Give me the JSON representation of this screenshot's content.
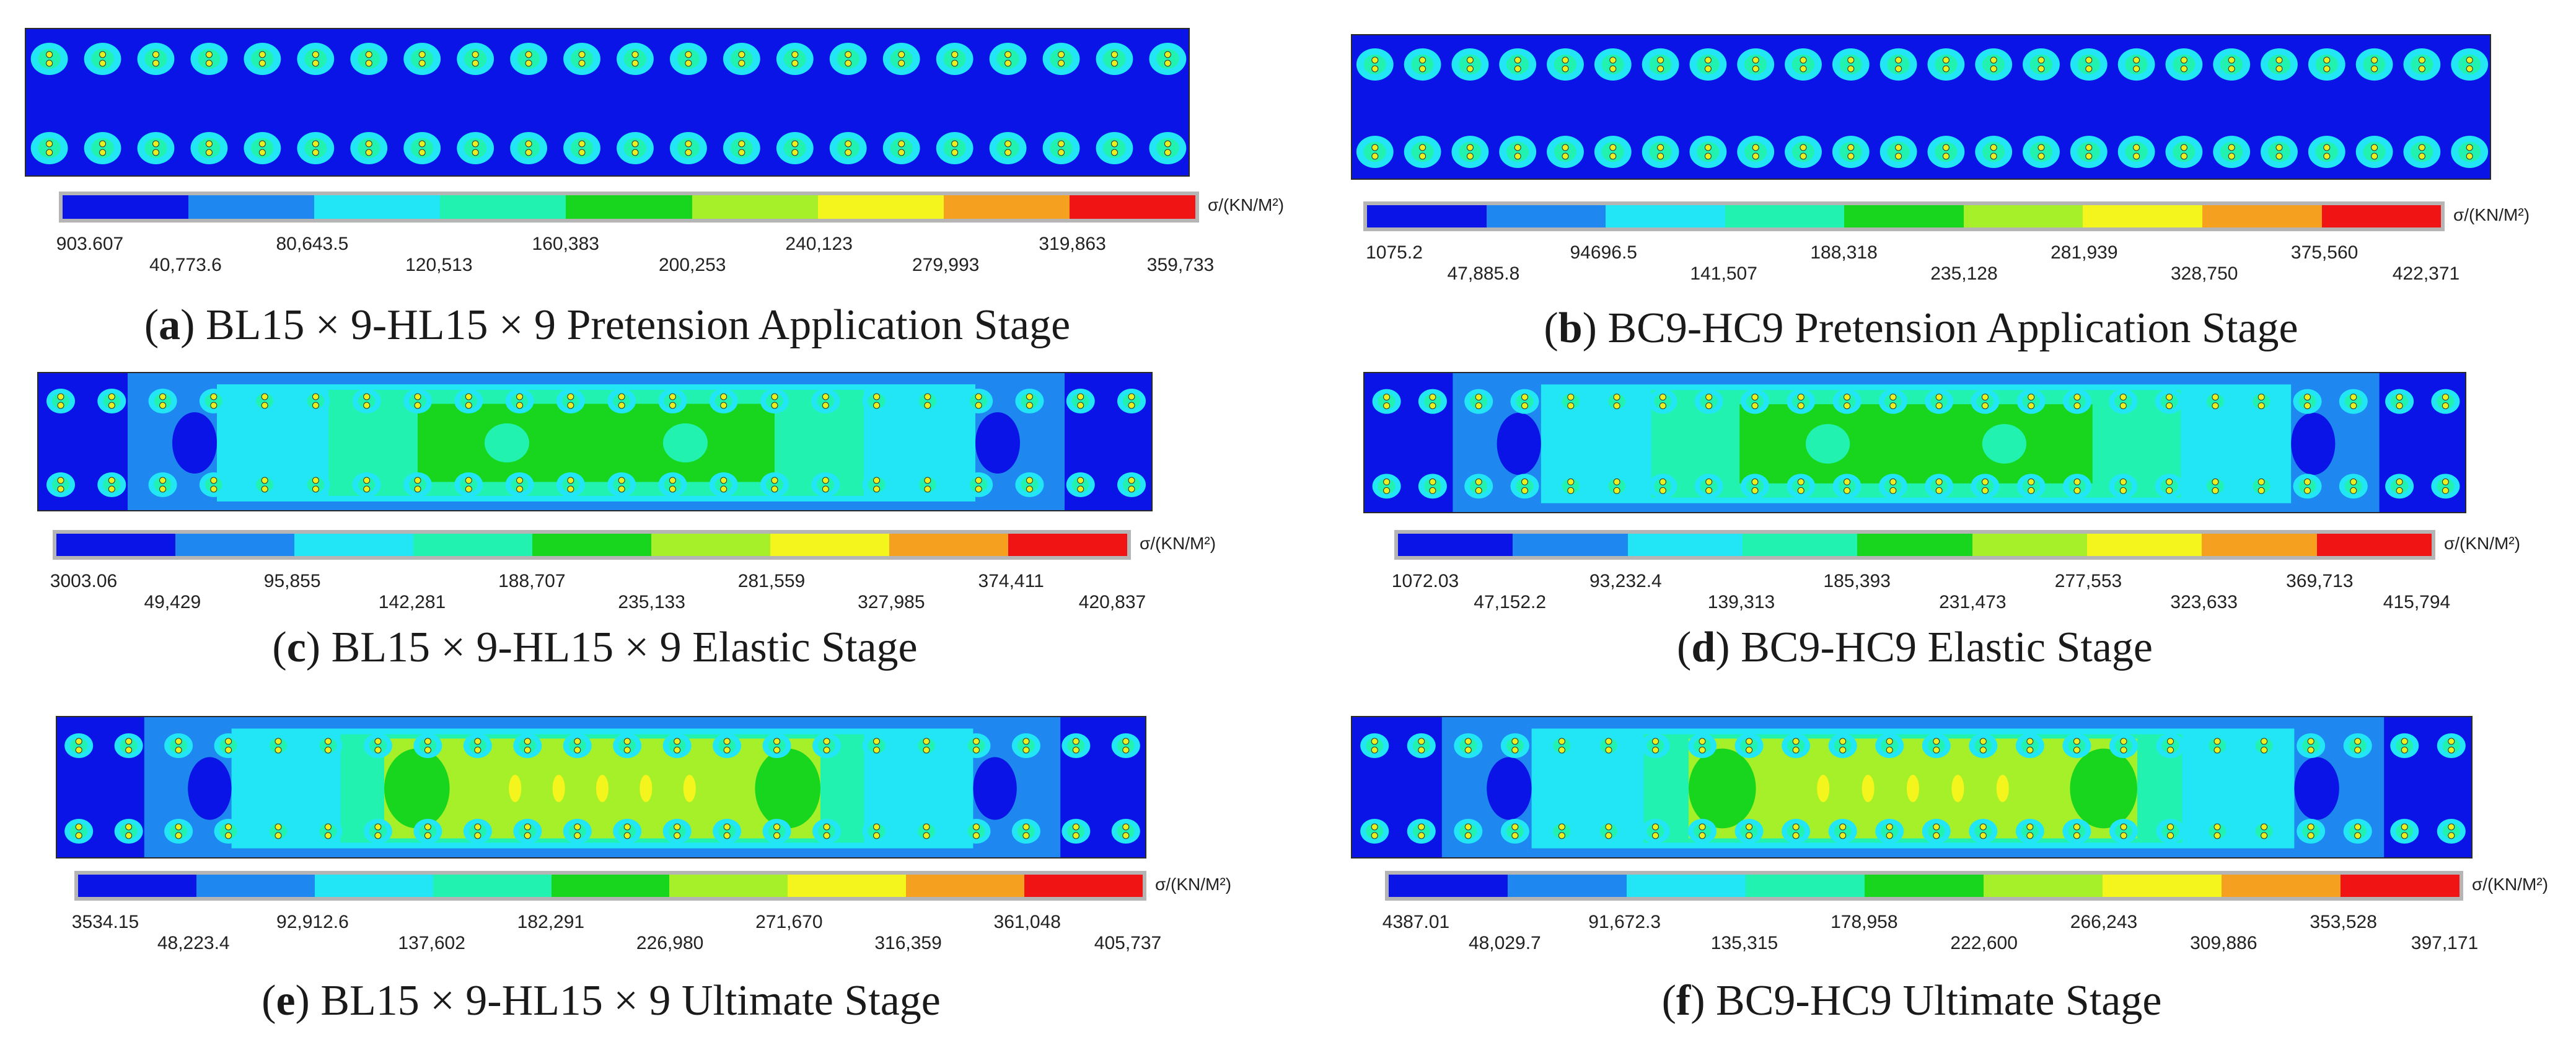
{
  "legend_colors": [
    "#0a14e6",
    "#1e88f0",
    "#22e6f5",
    "#22f2b0",
    "#18d61e",
    "#a6f02a",
    "#f5f51e",
    "#f5a01e",
    "#f01414"
  ],
  "panels": [
    {
      "id": "a",
      "letter": "a",
      "caption": "BL15 × 9-HL15 × 9 Pretension Application Stage",
      "stage": "pretension",
      "unit": "σ/(KN/M²)",
      "ticks": [
        "903.607",
        "40,773.6",
        "80,643.5",
        "120,513",
        "160,383",
        "200,253",
        "240,123",
        "279,993",
        "319,863",
        "359,733"
      ]
    },
    {
      "id": "b",
      "letter": "b",
      "caption": "BC9-HC9 Pretension Application Stage",
      "stage": "pretension",
      "unit": "σ/(KN/M²)",
      "ticks": [
        "1075.2",
        "47,885.8",
        "94696.5",
        "141,507",
        "188,318",
        "235,128",
        "281,939",
        "328,750",
        "375,560",
        "422,371"
      ]
    },
    {
      "id": "c",
      "letter": "c",
      "caption": "BL15 × 9-HL15 × 9 Elastic Stage",
      "stage": "elastic",
      "unit": "σ/(KN/M²)",
      "ticks": [
        "3003.06",
        "49,429",
        "95,855",
        "142,281",
        "188,707",
        "235,133",
        "281,559",
        "327,985",
        "374,411",
        "420,837"
      ]
    },
    {
      "id": "d",
      "letter": "d",
      "caption": "BC9-HC9 Elastic Stage",
      "stage": "elastic",
      "unit": "σ/(KN/M²)",
      "ticks": [
        "1072.03",
        "47,152.2",
        "93,232.4",
        "139,313",
        "185,393",
        "231,473",
        "277,553",
        "323,633",
        "369,713",
        "415,794"
      ]
    },
    {
      "id": "e",
      "letter": "e",
      "caption": "BL15 × 9-HL15 × 9 Ultimate Stage",
      "stage": "ultimate",
      "unit": "σ/(KN/M²)",
      "ticks": [
        "3534.15",
        "48,223.4",
        "92,912.6",
        "137,602",
        "182,291",
        "226,980",
        "271,670",
        "316,359",
        "361,048",
        "405,737"
      ]
    },
    {
      "id": "f",
      "letter": "f",
      "caption": "BC9-HC9 Ultimate Stage",
      "stage": "ultimate",
      "unit": "σ/(KN/M²)",
      "ticks": [
        "4387.01",
        "48,029.7",
        "91,672.3",
        "135,315",
        "178,958",
        "222,600",
        "266,243",
        "309,886",
        "353,528",
        "397,171"
      ]
    }
  ]
}
